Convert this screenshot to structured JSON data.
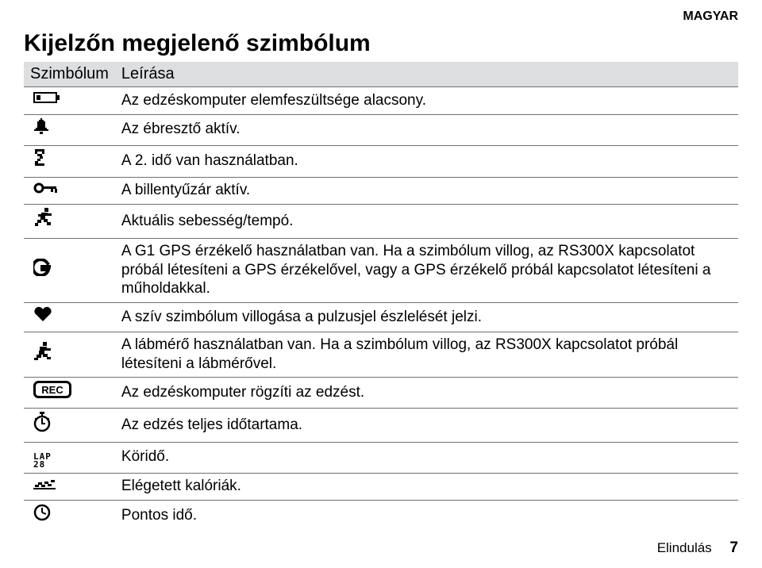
{
  "header": {
    "language": "MAGYAR"
  },
  "title": "Kijelzőn megjelenő szimbólum",
  "table": {
    "columns": {
      "symbol": "Szimbólum",
      "description": "Leírása"
    },
    "rows": [
      {
        "icon": "battery-low-icon",
        "desc": "Az edzéskomputer elemfeszültsége alacsony."
      },
      {
        "icon": "bell-icon",
        "desc": "Az ébresztő aktív."
      },
      {
        "icon": "timer2-icon",
        "desc": "A 2. idő van használatban."
      },
      {
        "icon": "key-icon",
        "desc": "A billentyűzár aktív."
      },
      {
        "icon": "runner-icon",
        "desc": "Aktuális sebesség/tempó."
      },
      {
        "icon": "gps-g-icon",
        "desc": "A G1 GPS érzékelő használatban van. Ha a szimbólum villog, az RS300X kapcsolatot próbál létesíteni a GPS érzékelővel, vagy a GPS érzékelő próbál kapcsolatot létesíteni a műholdakkal."
      },
      {
        "icon": "heart-icon",
        "desc": "A szív szimbólum villogása a pulzusjel észlelését jelzi."
      },
      {
        "icon": "foot-icon",
        "desc": "A lábmérő használatban van. Ha a szimbólum villog, az RS300X kapcsolatot próbál létesíteni a lábmérővel."
      },
      {
        "icon": "rec-icon",
        "desc": "Az edzéskomputer rögzíti az edzést."
      },
      {
        "icon": "stopwatch-icon",
        "desc": "Az edzés teljes időtartama."
      },
      {
        "icon": "lap-icon",
        "desc": "Köridő."
      },
      {
        "icon": "calories-icon",
        "desc": "Elégetett kalóriák."
      },
      {
        "icon": "clock-icon",
        "desc": "Pontos idő."
      }
    ]
  },
  "footer": {
    "section": "Elindulás",
    "page": "7"
  },
  "style": {
    "header_bg": "#dcdee0",
    "border_color": "#707070",
    "text_color": "#000000",
    "body_fontsize": 19,
    "title_fontsize": 30
  }
}
